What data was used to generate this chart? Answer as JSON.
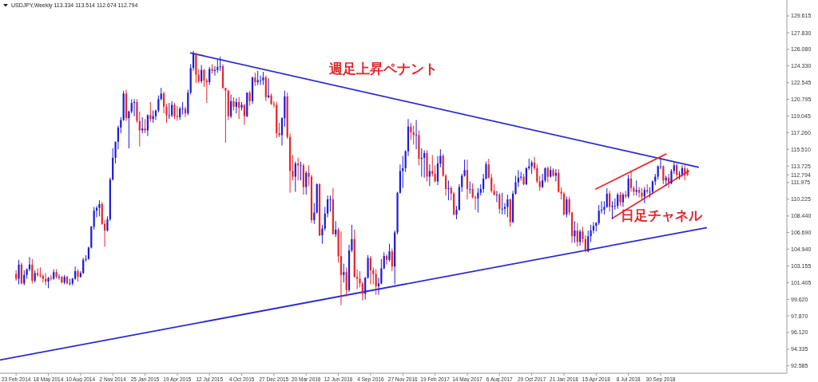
{
  "chart_data": {
    "type": "candlestick",
    "title": "USDJPY,Weekly  113.334 113.514 112.674 112.794",
    "grid": false,
    "colors": [
      "#e8262a",
      "#1c1cd9",
      "#e8262a",
      "#1c1cd9",
      "#1c1cd9",
      "#1c1cd9",
      "#e8262a",
      "#1c1cd9",
      "#e8262a",
      "#e8262a",
      "#e8262a",
      "#e8262a",
      "#1c1cd9",
      "#e8262a",
      "#1c1cd9",
      "#e8262a",
      "#1c1cd9",
      "#e8262a",
      "#1c1cd9",
      "#e8262a",
      "#1c1cd9",
      "#1c1cd9",
      "#1c1cd9",
      "#e8262a",
      "#1c1cd9",
      "#1c1cd9",
      "#1c1cd9",
      "#1c1cd9",
      "#1c1cd9",
      "#1c1cd9",
      "#1c1cd9",
      "#1c1cd9",
      "#e8262a",
      "#e8262a",
      "#1c1cd9",
      "#1c1cd9",
      "#1c1cd9",
      "#1c1cd9",
      "#1c1cd9",
      "#1c1cd9",
      "#1c1cd9",
      "#e8262a",
      "#1c1cd9",
      "#1c1cd9",
      "#1c1cd9",
      "#e8262a",
      "#e8262a",
      "#1c1cd9",
      "#e8262a",
      "#1c1cd9",
      "#e8262a",
      "#1c1cd9",
      "#1c1cd9",
      "#1c1cd9",
      "#1c1cd9",
      "#e8262a",
      "#e8262a",
      "#1c1cd9",
      "#1c1cd9",
      "#e8262a",
      "#e8262a",
      "#1c1cd9",
      "#1c1cd9",
      "#e8262a",
      "#1c1cd9",
      "#1c1cd9",
      "#1c1cd9",
      "#e8262a",
      "#e8262a",
      "#1c1cd9",
      "#e8262a",
      "#e8262a",
      "#1c1cd9",
      "#e8262a",
      "#1c1cd9",
      "#1c1cd9",
      "#1c1cd9",
      "#e8262a",
      "#e8262a",
      "#e8262a",
      "#1c1cd9",
      "#e8262a",
      "#1c1cd9",
      "#e8262a",
      "#1c1cd9",
      "#e8262a",
      "#1c1cd9",
      "#e8262a",
      "#1c1cd9",
      "#e8262a",
      "#1c1cd9",
      "#1c1cd9",
      "#1c1cd9",
      "#e8262a",
      "#1c1cd9",
      "#e8262a",
      "#e8262a",
      "#e8262a",
      "#e8262a",
      "#1c1cd9",
      "#1c1cd9",
      "#e8262a",
      "#e8262a",
      "#e8262a",
      "#1c1cd9",
      "#e8262a",
      "#1c1cd9",
      "#e8262a",
      "#1c1cd9",
      "#e8262a",
      "#e8262a",
      "#1c1cd9",
      "#1c1cd9",
      "#e8262a",
      "#1c1cd9",
      "#1c1cd9",
      "#1c1cd9",
      "#1c1cd9",
      "#e8262a",
      "#1c1cd9",
      "#e8262a",
      "#e8262a",
      "#1c1cd9",
      "#e8262a",
      "#1c1cd9",
      "#1c1cd9",
      "#e8262a",
      "#e8262a",
      "#e8262a",
      "#e8262a",
      "#1c1cd9",
      "#1c1cd9",
      "#e8262a",
      "#e8262a",
      "#e8262a",
      "#1c1cd9",
      "#1c1cd9",
      "#1c1cd9",
      "#e8262a",
      "#1c1cd9",
      "#e8262a",
      "#1c1cd9",
      "#1c1cd9",
      "#1c1cd9",
      "#1c1cd9",
      "#1c1cd9",
      "#1c1cd9",
      "#e8262a",
      "#e8262a",
      "#1c1cd9",
      "#e8262a",
      "#1c1cd9",
      "#1c1cd9",
      "#e8262a",
      "#1c1cd9",
      "#e8262a",
      "#e8262a",
      "#1c1cd9",
      "#1c1cd9",
      "#e8262a",
      "#e8262a",
      "#1c1cd9",
      "#e8262a",
      "#e8262a",
      "#1c1cd9",
      "#1c1cd9",
      "#1c1cd9",
      "#1c1cd9",
      "#e8262a",
      "#1c1cd9",
      "#e8262a",
      "#e8262a",
      "#1c1cd9",
      "#1c1cd9",
      "#1c1cd9",
      "#1c1cd9",
      "#e8262a",
      "#e8262a",
      "#e8262a",
      "#1c1cd9",
      "#e8262a",
      "#1c1cd9",
      "#1c1cd9",
      "#1c1cd9",
      "#e8262a",
      "#1c1cd9",
      "#1c1cd9",
      "#1c1cd9",
      "#1c1cd9",
      "#e8262a",
      "#1c1cd9",
      "#1c1cd9",
      "#1c1cd9",
      "#e8262a",
      "#e8262a",
      "#e8262a",
      "#1c1cd9",
      "#1c1cd9",
      "#e8262a",
      "#1c1cd9",
      "#e8262a",
      "#1c1cd9",
      "#e8262a",
      "#e8262a",
      "#e8262a",
      "#1c1cd9",
      "#e8262a",
      "#e8262a",
      "#1c1cd9",
      "#e8262a",
      "#1c1cd9",
      "#e8262a",
      "#e8262a",
      "#1c1cd9",
      "#1c1cd9",
      "#1c1cd9",
      "#1c1cd9",
      "#1c1cd9",
      "#1c1cd9",
      "#1c1cd9",
      "#1c1cd9",
      "#e8262a",
      "#1c1cd9",
      "#1c1cd9",
      "#1c1cd9",
      "#e8262a",
      "#1c1cd9",
      "#e8262a",
      "#1c1cd9",
      "#e8262a",
      "#e8262a",
      "#1c1cd9",
      "#e8262a",
      "#e8262a",
      "#1c1cd9",
      "#e8262a",
      "#1c1cd9",
      "#1c1cd9",
      "#1c1cd9",
      "#1c1cd9",
      "#1c1cd9",
      "#e8262a",
      "#1c1cd9",
      "#e8262a",
      "#1c1cd9",
      "#1c1cd9",
      "#e8262a",
      "#1c1cd9",
      "#1c1cd9",
      "#e8262a",
      "#e8262a"
    ],
    "xlim": [
      "2014-01-12",
      "2019-08-25"
    ],
    "ylim": [
      91.8,
      131.3
    ],
    "xticks": [
      {
        "value": "2014-02-23",
        "label": "23 Feb 2014"
      },
      {
        "value": "2014-05-18",
        "label": "18 May 2014"
      },
      {
        "value": "2014-08-10",
        "label": "10 Aug 2014"
      },
      {
        "value": "2014-11-02",
        "label": "2 Nov 2014"
      },
      {
        "value": "2015-01-25",
        "label": "25 Jan 2015"
      },
      {
        "value": "2015-04-19",
        "label": "19 Apr 2015"
      },
      {
        "value": "2015-07-12",
        "label": "12 Jul 2015"
      },
      {
        "value": "2015-10-04",
        "label": "4 Oct 2015"
      },
      {
        "value": "2015-12-27",
        "label": "27 Dec 2015"
      },
      {
        "value": "2016-03-20",
        "label": "20 Mar 2016"
      },
      {
        "value": "2016-06-12",
        "label": "12 Jun 2016"
      },
      {
        "value": "2016-09-04",
        "label": "4 Sep 2016"
      },
      {
        "value": "2016-11-27",
        "label": "27 Nov 2016"
      },
      {
        "value": "2017-02-19",
        "label": "19 Feb 2017"
      },
      {
        "value": "2017-05-14",
        "label": "14 May 2017"
      },
      {
        "value": "2017-08-06",
        "label": "6 Aug 2017"
      },
      {
        "value": "2017-10-29",
        "label": "29 Oct 2017"
      },
      {
        "value": "2018-01-21",
        "label": "21 Jan 2018"
      },
      {
        "value": "2018-04-15",
        "label": "15 Apr 2018"
      },
      {
        "value": "2018-07-08",
        "label": "8 Jul 2018"
      },
      {
        "value": "2018-09-30",
        "label": "30 Sep 2018"
      }
    ],
    "yticks": [
      {
        "value": 129.615,
        "label": "129.615"
      },
      {
        "value": 127.83,
        "label": "127.830"
      },
      {
        "value": 126.08,
        "label": "126.080"
      },
      {
        "value": 124.33,
        "label": "124.330"
      },
      {
        "value": 122.545,
        "label": "122.545"
      },
      {
        "value": 120.795,
        "label": "120.795"
      },
      {
        "value": 119.045,
        "label": "119.045"
      },
      {
        "value": 117.26,
        "label": "117.260"
      },
      {
        "value": 115.51,
        "label": "115.510"
      },
      {
        "value": 113.725,
        "label": "113.725"
      },
      {
        "value": 112.794,
        "label": "112.794"
      },
      {
        "value": 111.975,
        "label": "111.975"
      },
      {
        "value": 110.225,
        "label": "110.225"
      },
      {
        "value": 108.44,
        "label": "108.440"
      },
      {
        "value": 106.69,
        "label": "106.690"
      },
      {
        "value": 104.94,
        "label": "104.940"
      },
      {
        "value": 103.155,
        "label": "103.155"
      },
      {
        "value": 101.405,
        "label": "101.405"
      },
      {
        "value": 99.62,
        "label": "99.620"
      },
      {
        "value": 97.87,
        "label": "97.870"
      },
      {
        "value": 96.12,
        "label": "96.120"
      },
      {
        "value": 94.335,
        "label": "94.335"
      },
      {
        "value": 92.585,
        "label": "92.585"
      }
    ],
    "annotations": [
      "週足上昇ペナント",
      "日足チャネル"
    ],
    "series": [
      {
        "type": "line",
        "color": "#2a2ad0",
        "x": [
          "2015-05-24",
          "2019-01-06"
        ],
        "values": [
          125.7,
          113.6
        ]
      },
      {
        "type": "line",
        "color": "#2a2ad0",
        "x": [
          "2014-01-12",
          "2019-01-27"
        ],
        "values": [
          93.2,
          107.2
        ]
      },
      {
        "type": "line",
        "color": "#e83030",
        "x": [
          "2018-04-14",
          "2018-10-14"
        ],
        "values": [
          111.3,
          115.0
        ]
      },
      {
        "type": "line",
        "color": "#e83030",
        "x": [
          "2018-05-27",
          "2018-12-12"
        ],
        "values": [
          108.2,
          113.2
        ]
      }
    ],
    "x": [
      "2014-02-23",
      "2014-03-02",
      "2014-03-09",
      "2014-03-16",
      "2014-03-23",
      "2014-03-30",
      "2014-04-06",
      "2014-04-13",
      "2014-04-20",
      "2014-04-27",
      "2014-05-04",
      "2014-05-11",
      "2014-05-18",
      "2014-05-25",
      "2014-06-01",
      "2014-06-08",
      "2014-06-15",
      "2014-06-22",
      "2014-06-29",
      "2014-07-06",
      "2014-07-13",
      "2014-07-20",
      "2014-07-27",
      "2014-08-03",
      "2014-08-10",
      "2014-08-17",
      "2014-08-24",
      "2014-08-31",
      "2014-09-07",
      "2014-09-14",
      "2014-09-21",
      "2014-09-28",
      "2014-10-05",
      "2014-10-12",
      "2014-10-19",
      "2014-10-26",
      "2014-11-02",
      "2014-11-09",
      "2014-11-16",
      "2014-11-23",
      "2014-11-30",
      "2014-12-07",
      "2014-12-14",
      "2014-12-21",
      "2014-12-28",
      "2015-01-04",
      "2015-01-11",
      "2015-01-18",
      "2015-01-25",
      "2015-02-01",
      "2015-02-08",
      "2015-02-15",
      "2015-02-22",
      "2015-03-01",
      "2015-03-08",
      "2015-03-15",
      "2015-03-22",
      "2015-03-29",
      "2015-04-05",
      "2015-04-12",
      "2015-04-19",
      "2015-04-26",
      "2015-05-03",
      "2015-05-10",
      "2015-05-17",
      "2015-05-24",
      "2015-05-31",
      "2015-06-07",
      "2015-06-14",
      "2015-06-21",
      "2015-06-28",
      "2015-07-05",
      "2015-07-12",
      "2015-07-19",
      "2015-07-26",
      "2015-08-02",
      "2015-08-09",
      "2015-08-16",
      "2015-08-23",
      "2015-08-30",
      "2015-09-06",
      "2015-09-13",
      "2015-09-20",
      "2015-09-27",
      "2015-10-04",
      "2015-10-11",
      "2015-10-18",
      "2015-10-25",
      "2015-11-01",
      "2015-11-08",
      "2015-11-15",
      "2015-11-22",
      "2015-11-29",
      "2015-12-06",
      "2015-12-13",
      "2015-12-20",
      "2015-12-27",
      "2016-01-03",
      "2016-01-10",
      "2016-01-17",
      "2016-01-24",
      "2016-01-31",
      "2016-02-07",
      "2016-02-14",
      "2016-02-21",
      "2016-02-28",
      "2016-03-06",
      "2016-03-13",
      "2016-03-20",
      "2016-03-27",
      "2016-04-03",
      "2016-04-10",
      "2016-04-17",
      "2016-04-24",
      "2016-05-01",
      "2016-05-08",
      "2016-05-15",
      "2016-05-22",
      "2016-05-29",
      "2016-06-05",
      "2016-06-12",
      "2016-06-19",
      "2016-06-26",
      "2016-07-03",
      "2016-07-10",
      "2016-07-17",
      "2016-07-24",
      "2016-07-31",
      "2016-08-07",
      "2016-08-14",
      "2016-08-21",
      "2016-08-28",
      "2016-09-04",
      "2016-09-11",
      "2016-09-18",
      "2016-09-25",
      "2016-10-02",
      "2016-10-09",
      "2016-10-16",
      "2016-10-23",
      "2016-10-30",
      "2016-11-06",
      "2016-11-13",
      "2016-11-20",
      "2016-11-27",
      "2016-12-04",
      "2016-12-11",
      "2016-12-18",
      "2016-12-25",
      "2017-01-01",
      "2017-01-08",
      "2017-01-15",
      "2017-01-22",
      "2017-01-29",
      "2017-02-05",
      "2017-02-12",
      "2017-02-19",
      "2017-02-26",
      "2017-03-05",
      "2017-03-12",
      "2017-03-19",
      "2017-03-26",
      "2017-04-02",
      "2017-04-09",
      "2017-04-16",
      "2017-04-23",
      "2017-04-30",
      "2017-05-07",
      "2017-05-14",
      "2017-05-21",
      "2017-05-28",
      "2017-06-04",
      "2017-06-11",
      "2017-06-18",
      "2017-06-25",
      "2017-07-02",
      "2017-07-09",
      "2017-07-16",
      "2017-07-23",
      "2017-07-30",
      "2017-08-06",
      "2017-08-13",
      "2017-08-20",
      "2017-08-27",
      "2017-09-03",
      "2017-09-10",
      "2017-09-17",
      "2017-09-24",
      "2017-10-01",
      "2017-10-08",
      "2017-10-15",
      "2017-10-22",
      "2017-10-29",
      "2017-11-05",
      "2017-11-12",
      "2017-11-19",
      "2017-11-26",
      "2017-12-03",
      "2017-12-10",
      "2017-12-17",
      "2017-12-24",
      "2017-12-31",
      "2018-01-07",
      "2018-01-14",
      "2018-01-21",
      "2018-01-28",
      "2018-02-04",
      "2018-02-11",
      "2018-02-18",
      "2018-02-25",
      "2018-03-04",
      "2018-03-11",
      "2018-03-18",
      "2018-03-25",
      "2018-04-01",
      "2018-04-08",
      "2018-04-15",
      "2018-04-22",
      "2018-04-29",
      "2018-05-06",
      "2018-05-13",
      "2018-05-20",
      "2018-05-27",
      "2018-06-03",
      "2018-06-10",
      "2018-06-17",
      "2018-06-24",
      "2018-07-01",
      "2018-07-08",
      "2018-07-15",
      "2018-07-22",
      "2018-07-29",
      "2018-08-05",
      "2018-08-12",
      "2018-08-19",
      "2018-08-26",
      "2018-09-02",
      "2018-09-09",
      "2018-09-16",
      "2018-09-23",
      "2018-09-30",
      "2018-10-07",
      "2018-10-14",
      "2018-10-21",
      "2018-10-28",
      "2018-11-04",
      "2018-11-11",
      "2018-11-18",
      "2018-11-25",
      "2018-12-02",
      "2018-12-09"
    ],
    "ohlc": [
      [
        102.3,
        102.7,
        101.6,
        101.8
      ],
      [
        101.8,
        103.8,
        101.2,
        103.3
      ],
      [
        103.3,
        103.5,
        101.2,
        101.3
      ],
      [
        101.3,
        102.7,
        101.1,
        102.2
      ],
      [
        102.2,
        102.9,
        101.8,
        102.8
      ],
      [
        102.8,
        104.1,
        102.6,
        103.3
      ],
      [
        103.3,
        103.9,
        101.3,
        101.6
      ],
      [
        101.6,
        102.7,
        101.4,
        102.4
      ],
      [
        102.4,
        102.9,
        102.0,
        102.2
      ],
      [
        102.2,
        103.0,
        101.9,
        102.1
      ],
      [
        102.1,
        102.3,
        101.4,
        101.8
      ],
      [
        101.8,
        102.4,
        101.1,
        101.5
      ],
      [
        101.5,
        102.0,
        100.8,
        101.9
      ],
      [
        101.9,
        102.2,
        101.6,
        101.8
      ],
      [
        101.8,
        102.8,
        101.7,
        102.5
      ],
      [
        102.5,
        102.8,
        101.8,
        102.0
      ],
      [
        102.0,
        102.3,
        101.7,
        102.0
      ],
      [
        102.0,
        102.1,
        101.3,
        101.4
      ],
      [
        101.4,
        102.2,
        101.2,
        102.0
      ],
      [
        102.0,
        102.1,
        101.2,
        101.3
      ],
      [
        101.3,
        101.8,
        101.1,
        101.3
      ],
      [
        101.3,
        101.9,
        101.1,
        101.8
      ],
      [
        101.8,
        103.1,
        101.7,
        102.6
      ],
      [
        102.6,
        102.8,
        101.5,
        102.0
      ],
      [
        102.0,
        102.6,
        101.9,
        102.4
      ],
      [
        102.4,
        104.0,
        102.3,
        103.8
      ],
      [
        103.8,
        104.3,
        103.6,
        103.9
      ],
      [
        103.9,
        105.2,
        103.8,
        105.1
      ],
      [
        105.1,
        107.4,
        105.0,
        107.3
      ],
      [
        107.3,
        109.4,
        107.0,
        109.0
      ],
      [
        109.0,
        109.5,
        108.3,
        109.3
      ],
      [
        109.3,
        110.1,
        108.4,
        109.7
      ],
      [
        109.7,
        109.9,
        107.5,
        107.6
      ],
      [
        107.6,
        108.0,
        105.2,
        106.9
      ],
      [
        106.9,
        108.4,
        106.8,
        108.1
      ],
      [
        108.1,
        112.5,
        107.9,
        112.3
      ],
      [
        112.3,
        115.6,
        112.2,
        114.6
      ],
      [
        114.6,
        116.3,
        114.0,
        116.3
      ],
      [
        116.3,
        118.0,
        115.5,
        117.8
      ],
      [
        117.8,
        118.9,
        117.2,
        118.6
      ],
      [
        118.6,
        121.7,
        118.5,
        121.4
      ],
      [
        121.4,
        121.8,
        118.5,
        118.8
      ],
      [
        118.8,
        119.6,
        115.6,
        119.5
      ],
      [
        119.5,
        120.8,
        119.3,
        120.4
      ],
      [
        120.4,
        120.8,
        119.0,
        120.5
      ],
      [
        120.5,
        120.8,
        118.3,
        118.5
      ],
      [
        118.5,
        119.5,
        115.8,
        117.5
      ],
      [
        117.5,
        118.9,
        117.2,
        117.7
      ],
      [
        117.7,
        118.7,
        117.2,
        117.5
      ],
      [
        117.5,
        119.2,
        116.9,
        119.1
      ],
      [
        119.1,
        120.5,
        118.4,
        118.7
      ],
      [
        118.7,
        119.6,
        118.3,
        119.0
      ],
      [
        119.0,
        119.7,
        118.6,
        119.6
      ],
      [
        119.6,
        121.2,
        119.4,
        120.8
      ],
      [
        120.8,
        122.0,
        120.7,
        121.4
      ],
      [
        121.4,
        121.6,
        119.3,
        120.0
      ],
      [
        120.0,
        120.3,
        118.3,
        119.1
      ],
      [
        119.1,
        120.4,
        118.7,
        119.1
      ],
      [
        119.1,
        120.6,
        118.9,
        120.2
      ],
      [
        120.2,
        120.4,
        118.7,
        119.0
      ],
      [
        119.0,
        120.1,
        118.5,
        118.9
      ],
      [
        118.9,
        120.0,
        118.6,
        119.8
      ],
      [
        119.8,
        120.5,
        119.2,
        119.8
      ],
      [
        119.8,
        120.0,
        118.9,
        119.3
      ],
      [
        119.3,
        121.8,
        119.1,
        121.5
      ],
      [
        121.5,
        124.5,
        121.3,
        124.1
      ],
      [
        124.1,
        125.9,
        123.8,
        125.6
      ],
      [
        125.6,
        125.7,
        122.5,
        123.4
      ],
      [
        123.4,
        124.0,
        122.5,
        122.7
      ],
      [
        122.7,
        124.4,
        122.5,
        123.9
      ],
      [
        123.9,
        124.0,
        122.1,
        122.8
      ],
      [
        122.8,
        123.0,
        120.4,
        122.6
      ],
      [
        122.6,
        124.2,
        122.3,
        124.0
      ],
      [
        124.0,
        124.5,
        123.5,
        123.8
      ],
      [
        123.8,
        124.3,
        123.3,
        123.9
      ],
      [
        123.9,
        125.0,
        123.6,
        124.2
      ],
      [
        124.2,
        125.3,
        123.8,
        124.3
      ],
      [
        124.3,
        124.5,
        121.9,
        122.0
      ],
      [
        122.0,
        122.0,
        116.2,
        121.7
      ],
      [
        121.7,
        121.8,
        118.6,
        119.0
      ],
      [
        119.0,
        121.3,
        118.8,
        120.6
      ],
      [
        120.6,
        121.0,
        119.6,
        120.0
      ],
      [
        120.0,
        120.9,
        119.3,
        120.5
      ],
      [
        120.5,
        121.0,
        118.7,
        119.9
      ],
      [
        119.9,
        120.5,
        119.6,
        120.2
      ],
      [
        120.2,
        120.3,
        118.1,
        119.0
      ],
      [
        119.0,
        121.5,
        118.9,
        121.5
      ],
      [
        121.5,
        121.7,
        120.1,
        120.6
      ],
      [
        120.6,
        123.2,
        120.3,
        123.1
      ],
      [
        123.1,
        123.6,
        122.2,
        122.6
      ],
      [
        122.6,
        123.8,
        122.3,
        122.8
      ],
      [
        122.8,
        123.3,
        122.3,
        122.8
      ],
      [
        122.8,
        123.7,
        122.3,
        123.1
      ],
      [
        123.1,
        123.3,
        120.6,
        121.0
      ],
      [
        121.0,
        123.0,
        120.9,
        121.2
      ],
      [
        121.2,
        121.4,
        120.2,
        120.3
      ],
      [
        120.3,
        120.6,
        119.9,
        120.2
      ],
      [
        120.2,
        120.5,
        116.7,
        117.2
      ],
      [
        117.2,
        118.3,
        116.8,
        117.0
      ],
      [
        117.0,
        118.9,
        115.9,
        118.8
      ],
      [
        118.8,
        121.7,
        117.9,
        121.1
      ],
      [
        121.1,
        121.5,
        116.6,
        116.8
      ],
      [
        116.8,
        117.2,
        110.9,
        113.2
      ],
      [
        113.2,
        114.9,
        112.2,
        112.6
      ],
      [
        112.6,
        114.2,
        111.0,
        114.0
      ],
      [
        114.0,
        114.6,
        112.2,
        113.8
      ],
      [
        113.8,
        114.2,
        112.2,
        113.8
      ],
      [
        113.8,
        114.0,
        110.7,
        111.5
      ],
      [
        111.5,
        113.2,
        110.7,
        113.0
      ],
      [
        113.0,
        113.8,
        111.6,
        112.6
      ],
      [
        112.6,
        112.8,
        107.7,
        108.0
      ],
      [
        108.0,
        109.8,
        107.6,
        108.8
      ],
      [
        108.8,
        111.9,
        108.7,
        111.8
      ],
      [
        111.8,
        111.9,
        106.3,
        106.4
      ],
      [
        106.4,
        107.5,
        105.5,
        107.1
      ],
      [
        107.1,
        109.4,
        106.9,
        108.7
      ],
      [
        108.7,
        110.6,
        108.3,
        110.2
      ],
      [
        110.2,
        110.6,
        108.9,
        110.2
      ],
      [
        110.2,
        111.4,
        106.5,
        106.5
      ],
      [
        106.5,
        107.9,
        106.2,
        107.0
      ],
      [
        107.0,
        107.2,
        103.5,
        104.2
      ],
      [
        104.2,
        106.8,
        99.0,
        102.2
      ],
      [
        102.2,
        103.4,
        101.4,
        102.5
      ],
      [
        102.5,
        103.0,
        99.9,
        100.6
      ],
      [
        100.6,
        105.4,
        100.4,
        104.8
      ],
      [
        104.8,
        107.5,
        104.6,
        106.0
      ],
      [
        106.0,
        107.0,
        101.9,
        102.0
      ],
      [
        102.0,
        102.8,
        100.7,
        101.8
      ],
      [
        101.8,
        102.6,
        100.9,
        101.3
      ],
      [
        101.3,
        101.5,
        99.5,
        100.2
      ],
      [
        100.2,
        102.0,
        99.6,
        101.9
      ],
      [
        101.9,
        104.3,
        101.8,
        104.0
      ],
      [
        104.0,
        104.2,
        101.2,
        102.7
      ],
      [
        102.7,
        103.0,
        101.2,
        102.3
      ],
      [
        102.3,
        102.8,
        100.1,
        101.0
      ],
      [
        101.0,
        101.9,
        100.1,
        101.3
      ],
      [
        101.3,
        103.9,
        101.2,
        102.9
      ],
      [
        102.9,
        104.6,
        102.8,
        104.2
      ],
      [
        104.2,
        104.4,
        103.3,
        103.8
      ],
      [
        103.8,
        105.5,
        103.6,
        104.7
      ],
      [
        104.7,
        105.0,
        102.6,
        103.1
      ],
      [
        103.1,
        106.9,
        101.2,
        106.7
      ],
      [
        106.7,
        111.0,
        106.5,
        110.9
      ],
      [
        110.9,
        113.9,
        110.8,
        113.2
      ],
      [
        113.2,
        114.8,
        111.4,
        113.5
      ],
      [
        113.5,
        115.4,
        113.1,
        115.3
      ],
      [
        115.3,
        118.7,
        114.8,
        117.9
      ],
      [
        117.9,
        118.3,
        116.5,
        117.3
      ],
      [
        117.3,
        118.0,
        116.0,
        117.0
      ],
      [
        117.0,
        118.6,
        115.5,
        117.0
      ],
      [
        117.0,
        117.5,
        113.8,
        114.5
      ],
      [
        114.5,
        115.6,
        112.6,
        114.6
      ],
      [
        114.6,
        115.4,
        112.5,
        115.1
      ],
      [
        115.1,
        115.4,
        112.1,
        112.6
      ],
      [
        112.6,
        113.9,
        111.6,
        113.2
      ],
      [
        113.2,
        114.9,
        112.6,
        112.9
      ],
      [
        112.9,
        113.8,
        112.0,
        112.1
      ],
      [
        112.1,
        114.8,
        111.7,
        114.0
      ],
      [
        114.0,
        115.5,
        113.6,
        114.8
      ],
      [
        114.8,
        115.0,
        112.6,
        112.7
      ],
      [
        112.7,
        112.9,
        110.6,
        111.3
      ],
      [
        111.3,
        112.2,
        110.1,
        111.4
      ],
      [
        111.4,
        111.6,
        110.1,
        110.8
      ],
      [
        110.8,
        111.0,
        108.5,
        108.6
      ],
      [
        108.6,
        109.5,
        108.1,
        109.1
      ],
      [
        109.1,
        111.8,
        109.0,
        111.5
      ],
      [
        111.5,
        112.9,
        111.0,
        112.7
      ],
      [
        112.7,
        114.4,
        112.6,
        113.3
      ],
      [
        113.3,
        114.4,
        110.2,
        111.3
      ],
      [
        111.3,
        112.1,
        110.8,
        111.3
      ],
      [
        111.3,
        111.9,
        110.3,
        110.4
      ],
      [
        110.4,
        110.6,
        109.1,
        110.3
      ],
      [
        110.3,
        111.4,
        108.8,
        110.9
      ],
      [
        110.9,
        111.8,
        110.6,
        111.3
      ],
      [
        111.3,
        112.9,
        110.9,
        112.4
      ],
      [
        112.4,
        114.2,
        112.3,
        113.9
      ],
      [
        113.9,
        114.5,
        112.4,
        112.5
      ],
      [
        112.5,
        112.9,
        110.9,
        111.1
      ],
      [
        111.1,
        111.8,
        110.6,
        110.7
      ],
      [
        110.7,
        111.1,
        109.9,
        110.7
      ],
      [
        110.7,
        110.9,
        108.7,
        109.2
      ],
      [
        109.2,
        110.9,
        108.6,
        109.2
      ],
      [
        109.2,
        109.8,
        108.6,
        109.4
      ],
      [
        109.4,
        110.7,
        108.3,
        110.2
      ],
      [
        110.2,
        110.3,
        107.3,
        107.8
      ],
      [
        107.8,
        111.1,
        107.7,
        110.8
      ],
      [
        110.8,
        112.7,
        110.7,
        112.0
      ],
      [
        112.0,
        113.3,
        111.5,
        112.5
      ],
      [
        112.5,
        113.1,
        112.2,
        112.6
      ],
      [
        112.6,
        112.9,
        111.7,
        111.8
      ],
      [
        111.8,
        113.6,
        111.7,
        113.5
      ],
      [
        113.5,
        114.5,
        113.3,
        113.7
      ],
      [
        113.7,
        114.3,
        112.9,
        114.1
      ],
      [
        114.1,
        114.7,
        113.3,
        113.5
      ],
      [
        113.5,
        113.9,
        111.9,
        112.1
      ],
      [
        112.1,
        112.7,
        111.1,
        111.5
      ],
      [
        111.5,
        112.9,
        111.4,
        112.2
      ],
      [
        112.2,
        113.6,
        112.0,
        113.5
      ],
      [
        113.5,
        113.7,
        112.0,
        112.6
      ],
      [
        112.6,
        113.7,
        112.5,
        113.3
      ],
      [
        113.3,
        113.5,
        112.6,
        112.7
      ],
      [
        112.7,
        113.4,
        112.1,
        113.0
      ],
      [
        113.0,
        113.4,
        110.9,
        111.0
      ],
      [
        111.0,
        111.5,
        110.2,
        110.8
      ],
      [
        110.8,
        111.0,
        108.5,
        108.6
      ],
      [
        108.6,
        110.5,
        108.3,
        110.2
      ],
      [
        110.2,
        110.5,
        108.5,
        108.8
      ],
      [
        108.8,
        108.9,
        105.6,
        106.3
      ],
      [
        106.3,
        107.9,
        105.6,
        106.9
      ],
      [
        106.9,
        107.7,
        105.2,
        105.7
      ],
      [
        105.7,
        107.0,
        105.3,
        106.8
      ],
      [
        106.8,
        107.3,
        105.6,
        106.0
      ],
      [
        106.0,
        106.4,
        104.6,
        104.7
      ],
      [
        104.7,
        106.9,
        104.6,
        106.3
      ],
      [
        106.3,
        107.5,
        105.7,
        106.9
      ],
      [
        106.9,
        107.8,
        106.6,
        107.4
      ],
      [
        107.4,
        107.8,
        106.8,
        107.7
      ],
      [
        107.7,
        109.6,
        107.5,
        109.0
      ],
      [
        109.0,
        110.0,
        108.7,
        109.1
      ],
      [
        109.1,
        110.0,
        108.6,
        109.4
      ],
      [
        109.4,
        111.4,
        109.3,
        110.8
      ],
      [
        110.8,
        111.1,
        108.9,
        109.4
      ],
      [
        109.4,
        110.0,
        108.1,
        109.5
      ],
      [
        109.5,
        110.3,
        109.1,
        109.5
      ],
      [
        109.5,
        110.9,
        109.2,
        110.7
      ],
      [
        110.7,
        111.0,
        109.5,
        109.9
      ],
      [
        109.9,
        110.9,
        109.4,
        110.7
      ],
      [
        110.7,
        111.1,
        110.3,
        110.5
      ],
      [
        110.5,
        112.8,
        110.3,
        112.4
      ],
      [
        112.4,
        113.2,
        111.0,
        111.4
      ],
      [
        111.4,
        111.6,
        110.6,
        111.0
      ],
      [
        111.0,
        112.2,
        110.6,
        111.2
      ],
      [
        111.2,
        111.5,
        110.4,
        110.9
      ],
      [
        110.9,
        111.4,
        110.1,
        110.5
      ],
      [
        110.5,
        111.5,
        109.8,
        111.2
      ],
      [
        111.2,
        111.8,
        110.8,
        111.0
      ],
      [
        111.0,
        111.5,
        110.4,
        111.0
      ],
      [
        111.0,
        112.2,
        110.8,
        112.1
      ],
      [
        112.1,
        112.9,
        111.7,
        112.6
      ],
      [
        112.6,
        113.8,
        112.3,
        113.7
      ],
      [
        113.7,
        114.6,
        113.4,
        113.7
      ],
      [
        113.7,
        113.8,
        111.8,
        112.2
      ],
      [
        112.2,
        112.7,
        111.6,
        112.5
      ],
      [
        112.5,
        112.9,
        111.4,
        111.9
      ],
      [
        111.9,
        113.4,
        111.8,
        113.2
      ],
      [
        113.2,
        114.1,
        112.9,
        113.8
      ],
      [
        113.8,
        114.0,
        112.3,
        112.8
      ],
      [
        112.8,
        113.2,
        112.3,
        112.9
      ],
      [
        112.9,
        113.8,
        112.6,
        113.5
      ],
      [
        113.5,
        113.8,
        112.2,
        112.7
      ],
      [
        113.334,
        113.514,
        112.674,
        112.794
      ]
    ]
  }
}
